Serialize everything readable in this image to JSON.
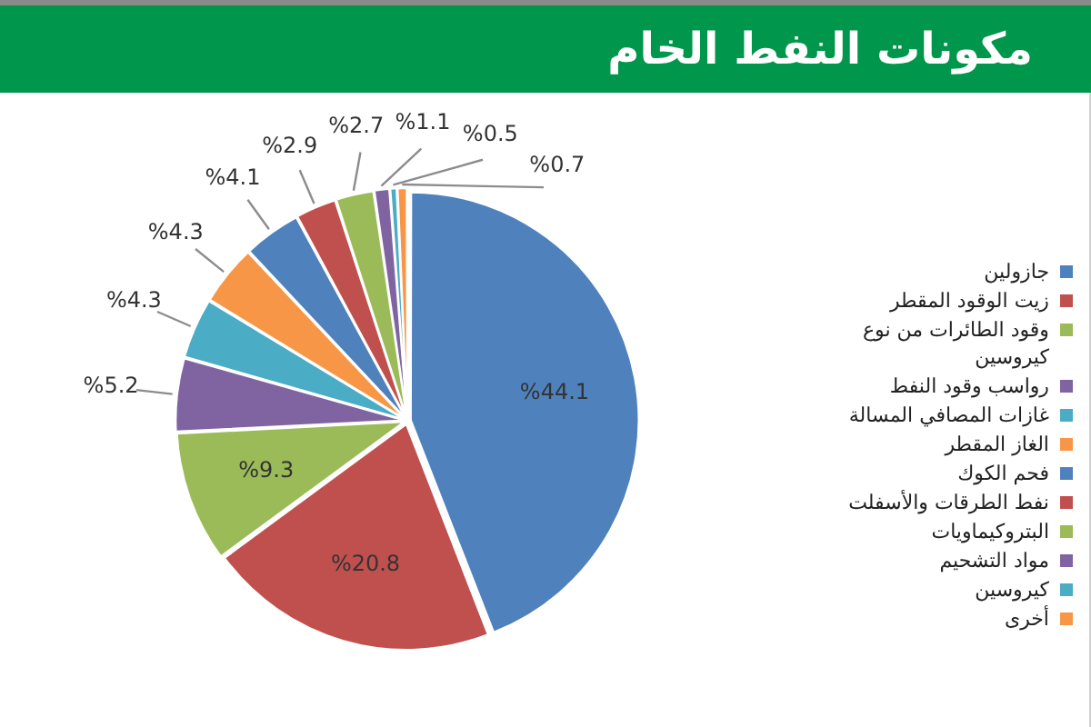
{
  "chart_data": {
    "type": "pie",
    "title": "مكونات النفط الخام",
    "categories": [
      "جازولين",
      "زيت الوقود المقطر",
      "وقود الطائرات من نوع كيروسين",
      "رواسب وقود النفط",
      "غازات المصافي المسالة",
      "الغاز المقطر",
      "فحم الكوك",
      "نفط الطرقات والأسفلت",
      "البتروكيماويات",
      "مواد التشحيم",
      "كيروسين",
      "أخرى"
    ],
    "values": [
      44.1,
      20.8,
      9.3,
      5.2,
      4.3,
      4.3,
      4.1,
      2.9,
      2.7,
      1.1,
      0.5,
      0.7
    ],
    "colors": [
      "#4f81bd",
      "#c0504d",
      "#9bbb59",
      "#8064a2",
      "#4bacc6",
      "#f79646",
      "#4f81bd",
      "#c0504d",
      "#9bbb59",
      "#8064a2",
      "#4bacc6",
      "#f79646"
    ],
    "value_labels": [
      "%44.1",
      "%20.8",
      "%9.3",
      "%5.2",
      "%4.3",
      "%4.3",
      "%4.1",
      "%2.9",
      "%2.7",
      "%1.1",
      "%0.5",
      "%0.7"
    ],
    "legend": "right"
  }
}
